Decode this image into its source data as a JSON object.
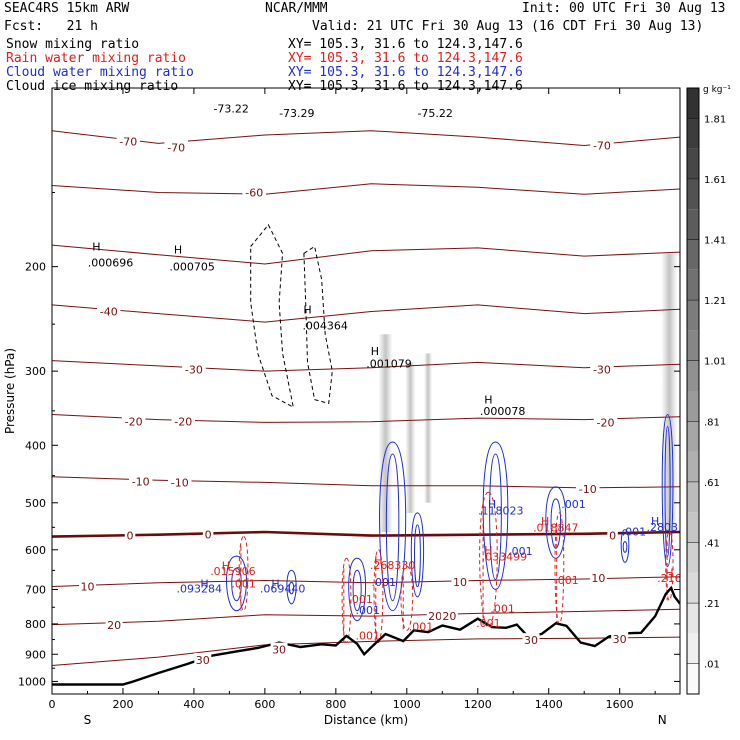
{
  "header": {
    "model": "SEAC4RS 15km ARW",
    "org": "NCAR/MMM",
    "init": "Init: 00 UTC Fri 30 Aug 13",
    "fcst": "Fcst:   21 h",
    "valid": "Valid: 21 UTC Fri 30 Aug 13 (16 CDT Fri 30 Aug 13)",
    "fields": [
      {
        "name": "Snow mixing ratio",
        "xy": "XY= 105.3, 31.6 to 124.3,147.6",
        "color": "#000000"
      },
      {
        "name": "Rain water mixing ratio",
        "xy": "XY= 105.3, 31.6 to 124.3,147.6",
        "color": "#e0201a"
      },
      {
        "name": "Cloud water mixing ratio",
        "xy": "XY= 105.3, 31.6 to 124.3,147.6",
        "color": "#1f2fd0"
      },
      {
        "name": "Cloud ice mixing ratio",
        "xy": "XY= 105.3, 31.6 to 124.3,147.6",
        "color": "#000000"
      }
    ]
  },
  "colors": {
    "temperature": "#7a1010",
    "zero_isotherm": "#6b0c0c",
    "terrain": "#000000",
    "rain": "#e0201a",
    "cloud": "#1f2fd0"
  },
  "chart_data": {
    "type": "cross-section",
    "xlabel": "Distance (km)",
    "ylabel": "Pressure (hPa)",
    "x_ticks": [
      0,
      200,
      400,
      600,
      800,
      1000,
      1200,
      1400,
      1600
    ],
    "y_ticks": [
      200,
      300,
      400,
      500,
      600,
      700,
      800,
      900,
      1000
    ],
    "xlim": [
      0,
      1770
    ],
    "ylim": [
      1050,
      100
    ],
    "y_scale": "log",
    "end_labels": {
      "left": "S",
      "right": "N"
    },
    "colorbar": {
      "unit": "g kg⁻¹",
      "labels": [
        ".01",
        ".21",
        ".41",
        ".61",
        ".81",
        "1.01",
        "1.21",
        "1.41",
        "1.61",
        "1.81"
      ]
    },
    "isotherms": [
      {
        "temp": -70,
        "points": [
          [
            0,
            118
          ],
          [
            300,
            124
          ],
          [
            600,
            120
          ],
          [
            900,
            118
          ],
          [
            1200,
            121
          ],
          [
            1500,
            125
          ],
          [
            1770,
            121
          ]
        ],
        "labels": [
          {
            "text": "-70",
            "x": 215,
            "p": 123
          },
          {
            "text": "-70",
            "x": 350,
            "p": 126
          },
          {
            "text": "-70",
            "x": 1550,
            "p": 125
          }
        ]
      },
      {
        "temp": -60,
        "points": [
          [
            0,
            146
          ],
          [
            300,
            150
          ],
          [
            600,
            151
          ],
          [
            900,
            145
          ],
          [
            1200,
            147
          ],
          [
            1500,
            151
          ],
          [
            1770,
            148
          ]
        ],
        "labels": [
          {
            "text": "-60",
            "x": 570,
            "p": 150
          }
        ]
      },
      {
        "temp": -50,
        "points": [
          [
            0,
            184
          ],
          [
            300,
            191
          ],
          [
            600,
            198
          ],
          [
            900,
            188
          ],
          [
            1200,
            186
          ],
          [
            1500,
            192
          ],
          [
            1770,
            189
          ]
        ],
        "labels": []
      },
      {
        "temp": -40,
        "points": [
          [
            0,
            232
          ],
          [
            300,
            240
          ],
          [
            600,
            248
          ],
          [
            900,
            238
          ],
          [
            1200,
            232
          ],
          [
            1500,
            240
          ],
          [
            1770,
            236
          ]
        ],
        "labels": [
          {
            "text": "-40",
            "x": 160,
            "p": 238
          }
        ]
      },
      {
        "temp": -30,
        "points": [
          [
            0,
            288
          ],
          [
            300,
            294
          ],
          [
            600,
            300
          ],
          [
            900,
            296
          ],
          [
            1200,
            290
          ],
          [
            1500,
            296
          ],
          [
            1770,
            292
          ]
        ],
        "labels": [
          {
            "text": "-30",
            "x": 400,
            "p": 298
          },
          {
            "text": "-30",
            "x": 1550,
            "p": 298
          }
        ]
      },
      {
        "temp": -20,
        "points": [
          [
            0,
            355
          ],
          [
            300,
            362
          ],
          [
            600,
            366
          ],
          [
            900,
            365
          ],
          [
            1200,
            360
          ],
          [
            1500,
            362
          ],
          [
            1770,
            358
          ]
        ],
        "labels": [
          {
            "text": "-20",
            "x": 230,
            "p": 365
          },
          {
            "text": "-20",
            "x": 370,
            "p": 365
          },
          {
            "text": "-20",
            "x": 1560,
            "p": 366
          }
        ]
      },
      {
        "temp": -10,
        "points": [
          [
            0,
            452
          ],
          [
            300,
            458
          ],
          [
            600,
            462
          ],
          [
            900,
            468
          ],
          [
            1200,
            468
          ],
          [
            1500,
            472
          ],
          [
            1770,
            470
          ]
        ],
        "labels": [
          {
            "text": "-10",
            "x": 250,
            "p": 460
          },
          {
            "text": "-10",
            "x": 360,
            "p": 462
          },
          {
            "text": "-10",
            "x": 1510,
            "p": 474
          }
        ]
      },
      {
        "temp": 0,
        "points": [
          [
            0,
            570
          ],
          [
            300,
            566
          ],
          [
            600,
            560
          ],
          [
            900,
            568
          ],
          [
            1200,
            566
          ],
          [
            1500,
            564
          ],
          [
            1770,
            560
          ]
        ],
        "labels": [
          {
            "text": "0",
            "x": 220,
            "p": 568
          },
          {
            "text": "0",
            "x": 440,
            "p": 566
          },
          {
            "text": "0",
            "x": 1580,
            "p": 568
          }
        ]
      },
      {
        "temp": 10,
        "points": [
          [
            0,
            692
          ],
          [
            300,
            682
          ],
          [
            600,
            676
          ],
          [
            900,
            682
          ],
          [
            1200,
            676
          ],
          [
            1500,
            672
          ],
          [
            1770,
            666
          ]
        ],
        "labels": [
          {
            "text": "10",
            "x": 100,
            "p": 692
          },
          {
            "text": "10",
            "x": 1150,
            "p": 680
          },
          {
            "text": "10",
            "x": 1540,
            "p": 670
          }
        ]
      },
      {
        "temp": 20,
        "points": [
          [
            0,
            802
          ],
          [
            300,
            792
          ],
          [
            600,
            772
          ],
          [
            900,
            776
          ],
          [
            1200,
            768
          ],
          [
            1500,
            762
          ],
          [
            1770,
            756
          ]
        ],
        "labels": [
          {
            "text": "20",
            "x": 175,
            "p": 804
          },
          {
            "text": "20",
            "x": 1080,
            "p": 776
          },
          {
            "text": "20",
            "x": 1120,
            "p": 776
          }
        ]
      },
      {
        "temp": 30,
        "points": [
          [
            0,
            940
          ],
          [
            300,
            910
          ],
          [
            600,
            868
          ],
          [
            900,
            856
          ],
          [
            1200,
            848
          ],
          [
            1500,
            846
          ],
          [
            1770,
            842
          ]
        ],
        "labels": [
          {
            "text": "30",
            "x": 425,
            "p": 920
          },
          {
            "text": "30",
            "x": 640,
            "p": 884
          },
          {
            "text": "30",
            "x": 1350,
            "p": 852
          },
          {
            "text": "30",
            "x": 1600,
            "p": 848
          }
        ]
      }
    ],
    "terrain": [
      [
        0,
        1012
      ],
      [
        100,
        1012
      ],
      [
        200,
        1012
      ],
      [
        230,
        1000
      ],
      [
        300,
        968
      ],
      [
        380,
        935
      ],
      [
        450,
        905
      ],
      [
        520,
        890
      ],
      [
        580,
        878
      ],
      [
        640,
        860
      ],
      [
        700,
        875
      ],
      [
        760,
        866
      ],
      [
        800,
        870
      ],
      [
        830,
        838
      ],
      [
        860,
        864
      ],
      [
        880,
        900
      ],
      [
        900,
        876
      ],
      [
        940,
        832
      ],
      [
        990,
        855
      ],
      [
        1020,
        820
      ],
      [
        1060,
        826
      ],
      [
        1100,
        805
      ],
      [
        1150,
        818
      ],
      [
        1200,
        784
      ],
      [
        1240,
        810
      ],
      [
        1280,
        812
      ],
      [
        1310,
        802
      ],
      [
        1340,
        838
      ],
      [
        1380,
        832
      ],
      [
        1420,
        798
      ],
      [
        1450,
        806
      ],
      [
        1490,
        860
      ],
      [
        1530,
        872
      ],
      [
        1570,
        840
      ],
      [
        1610,
        830
      ],
      [
        1660,
        828
      ],
      [
        1700,
        776
      ],
      [
        1730,
        712
      ],
      [
        1745,
        696
      ],
      [
        1755,
        720
      ],
      [
        1770,
        740
      ]
    ],
    "cloud_water": [
      {
        "x": 520,
        "p": 680,
        "w": 65,
        "h_top": 615,
        "h_bot": 760
      },
      {
        "x": 675,
        "p": 700,
        "w": 30,
        "h_top": 650,
        "h_bot": 740
      },
      {
        "x": 860,
        "p": 680,
        "w": 55,
        "h_top": 620,
        "h_bot": 790
      },
      {
        "x": 960,
        "p": 560,
        "w": 85,
        "h_top": 395,
        "h_bot": 760
      },
      {
        "x": 1030,
        "p": 600,
        "w": 40,
        "h_top": 520,
        "h_bot": 720
      },
      {
        "x": 1250,
        "p": 540,
        "w": 80,
        "h_top": 395,
        "h_bot": 700
      },
      {
        "x": 1420,
        "p": 540,
        "w": 65,
        "h_top": 470,
        "h_bot": 620
      },
      {
        "x": 1615,
        "p": 590,
        "w": 25,
        "h_top": 555,
        "h_bot": 630
      },
      {
        "x": 1735,
        "p": 500,
        "w": 35,
        "h_top": 355,
        "h_bot": 640
      }
    ],
    "rain_water": [
      {
        "x": 540,
        "p": 640,
        "w": 30,
        "h_top": 570,
        "h_bot": 760
      },
      {
        "x": 830,
        "p": 720,
        "w": 30,
        "h_top": 620,
        "h_bot": 860
      },
      {
        "x": 920,
        "p": 690,
        "w": 30,
        "h_top": 600,
        "h_bot": 860
      },
      {
        "x": 1000,
        "p": 700,
        "w": 40,
        "h_top": 640,
        "h_bot": 820
      },
      {
        "x": 1230,
        "p": 660,
        "w": 60,
        "h_top": 480,
        "h_bot": 810
      },
      {
        "x": 1430,
        "p": 640,
        "w": 30,
        "h_top": 520,
        "h_bot": 800
      },
      {
        "x": 1740,
        "p": 650,
        "w": 25,
        "h_top": 560,
        "h_bot": 730
      }
    ],
    "snow": [
      {
        "points": [
          [
            560,
            185
          ],
          [
            610,
            170
          ],
          [
            650,
            190
          ],
          [
            640,
            230
          ],
          [
            650,
            280
          ],
          [
            680,
            345
          ],
          [
            620,
            330
          ],
          [
            580,
            280
          ],
          [
            560,
            230
          ]
        ]
      },
      {
        "points": [
          [
            710,
            190
          ],
          [
            740,
            185
          ],
          [
            760,
            210
          ],
          [
            770,
            260
          ],
          [
            790,
            300
          ],
          [
            780,
            340
          ],
          [
            740,
            335
          ],
          [
            720,
            290
          ],
          [
            715,
            230
          ]
        ]
      }
    ],
    "annotations": [
      {
        "text": "H",
        "x": 125,
        "p": 188,
        "color": "#000000"
      },
      {
        "text": ".000696",
        "x": 165,
        "p": 200,
        "color": "#000000"
      },
      {
        "text": "H",
        "x": 355,
        "p": 190,
        "color": "#000000"
      },
      {
        "text": ".000705",
        "x": 395,
        "p": 203,
        "color": "#000000"
      },
      {
        "text": "H",
        "x": 720,
        "p": 240,
        "color": "#000000"
      },
      {
        "text": ".004364",
        "x": 770,
        "p": 255,
        "color": "#000000"
      },
      {
        "text": "H",
        "x": 910,
        "p": 282,
        "color": "#000000"
      },
      {
        "text": ".001079",
        "x": 950,
        "p": 296,
        "color": "#000000"
      },
      {
        "text": "H",
        "x": 1230,
        "p": 340,
        "color": "#000000"
      },
      {
        "text": ".000078",
        "x": 1270,
        "p": 356,
        "color": "#000000"
      },
      {
        "text": "-73.22",
        "x": 505,
        "p": 110,
        "color": "#000000"
      },
      {
        "text": "-73.29",
        "x": 690,
        "p": 112,
        "color": "#000000"
      },
      {
        "text": "-75.22",
        "x": 1080,
        "p": 112,
        "color": "#000000"
      },
      {
        "text": "H",
        "x": 490,
        "p": 648,
        "color": "#e0201a"
      },
      {
        "text": ".015906",
        "x": 510,
        "p": 662,
        "color": "#e0201a"
      },
      {
        "text": ".001",
        "x": 540,
        "p": 695,
        "color": "#e0201a"
      },
      {
        "text": "H",
        "x": 430,
        "p": 695,
        "color": "#1f2fd0"
      },
      {
        "text": ".093284",
        "x": 415,
        "p": 708,
        "color": "#1f2fd0"
      },
      {
        "text": "H",
        "x": 630,
        "p": 695,
        "color": "#1f2fd0"
      },
      {
        "text": ".069440",
        "x": 650,
        "p": 708,
        "color": "#1f2fd0"
      },
      {
        "text": ".001",
        "x": 870,
        "p": 738,
        "color": "#e0201a"
      },
      {
        "text": ".001",
        "x": 890,
        "p": 770,
        "color": "#1f2fd0"
      },
      {
        "text": "H",
        "x": 920,
        "p": 634,
        "color": "#e0201a"
      },
      {
        "text": ".268330",
        "x": 960,
        "p": 646,
        "color": "#e0201a"
      },
      {
        "text": ".001",
        "x": 935,
        "p": 690,
        "color": "#1f2fd0"
      },
      {
        "text": ".001",
        "x": 890,
        "p": 850,
        "color": "#e0201a"
      },
      {
        "text": ".001",
        "x": 1040,
        "p": 820,
        "color": "#e0201a"
      },
      {
        "text": "H",
        "x": 1230,
        "p": 610,
        "color": "#e0201a"
      },
      {
        "text": ".033499",
        "x": 1275,
        "p": 625,
        "color": "#e0201a"
      },
      {
        "text": ".001",
        "x": 1320,
        "p": 612,
        "color": "#1f2fd0"
      },
      {
        "text": ".001",
        "x": 1270,
        "p": 765,
        "color": "#e0201a"
      },
      {
        "text": ".001",
        "x": 1230,
        "p": 810,
        "color": "#e0201a"
      },
      {
        "text": "H",
        "x": 1240,
        "p": 510,
        "color": "#1f2fd0"
      },
      {
        "text": ".118023",
        "x": 1265,
        "p": 523,
        "color": "#1f2fd0"
      },
      {
        "text": "H",
        "x": 1390,
        "p": 545,
        "color": "#e0201a"
      },
      {
        "text": ".018847",
        "x": 1420,
        "p": 559,
        "color": "#e0201a"
      },
      {
        "text": ".001",
        "x": 1470,
        "p": 510,
        "color": "#1f2fd0"
      },
      {
        "text": ".001",
        "x": 1450,
        "p": 685,
        "color": "#e0201a"
      },
      {
        "text": ".001",
        "x": 1640,
        "p": 568,
        "color": "#1f2fd0"
      },
      {
        "text": "H",
        "x": 1700,
        "p": 545,
        "color": "#1f2fd0"
      },
      {
        "text": ".2803",
        "x": 1720,
        "p": 558,
        "color": "#1f2fd0"
      },
      {
        "text": "H",
        "x": 1740,
        "p": 665,
        "color": "#e0201a"
      },
      {
        "text": ".216",
        "x": 1740,
        "p": 680,
        "color": "#e0201a"
      }
    ]
  }
}
